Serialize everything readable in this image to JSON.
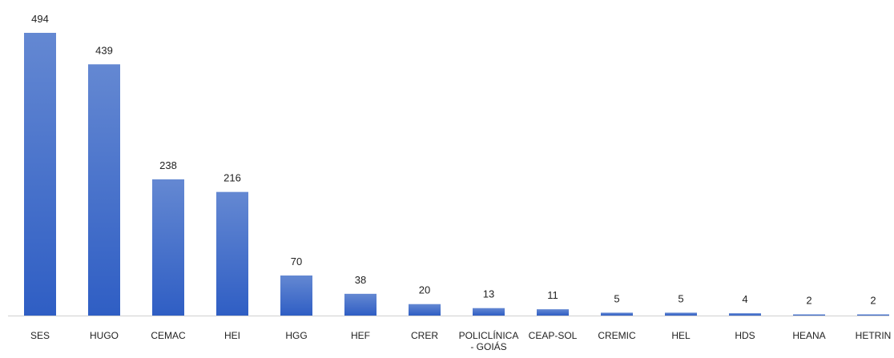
{
  "chart_data": {
    "type": "bar",
    "categories": [
      "SES",
      "HUGO",
      "CEMAC",
      "HEI",
      "HGG",
      "HEF",
      "CRER",
      "POLICLÍNICA - GOIÁS",
      "CEAP-SOL",
      "CREMIC",
      "HEL",
      "HDS",
      "HEANA",
      "HETRIN"
    ],
    "values": [
      494,
      439,
      238,
      216,
      70,
      38,
      20,
      13,
      11,
      5,
      5,
      4,
      2,
      2
    ],
    "color": "#3d68c8",
    "grid": false
  }
}
